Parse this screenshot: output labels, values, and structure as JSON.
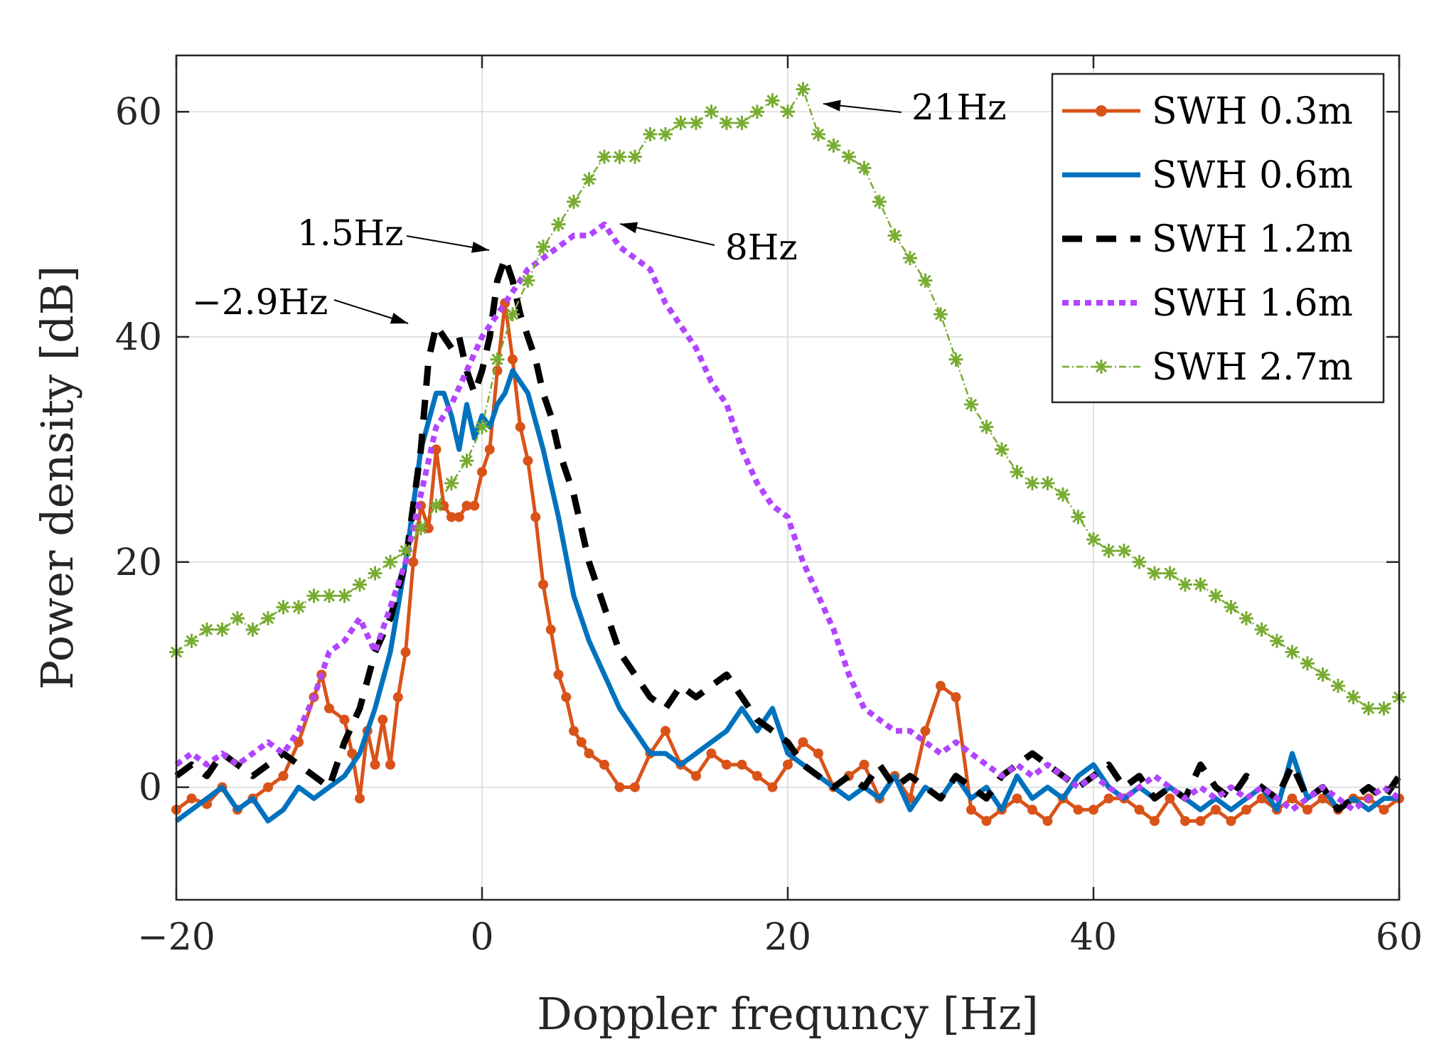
{
  "chart_data": {
    "type": "line",
    "title": "",
    "xlabel": "Doppler frequncy [Hz]",
    "ylabel": "Power density [dB]",
    "xlim": [
      -20,
      60
    ],
    "ylim": [
      -10,
      65
    ],
    "xticks": [
      -20,
      0,
      20,
      40,
      60
    ],
    "xtick_labels": [
      "−20",
      "0",
      "20",
      "40",
      "60"
    ],
    "yticks": [
      0,
      20,
      40,
      60
    ],
    "ytick_labels": [
      "0",
      "20",
      "40",
      "60"
    ],
    "grid": true,
    "legend_position": "top-right",
    "series": [
      {
        "name": "SWH 0.3m",
        "color": "#D95319",
        "style": "solid-dot",
        "x": [
          -20,
          -19,
          -18,
          -17,
          -16,
          -15,
          -14,
          -13,
          -12,
          -11,
          -10.5,
          -10,
          -9,
          -8.5,
          -8,
          -7.5,
          -7,
          -6.5,
          -6,
          -5.5,
          -5,
          -4.5,
          -4,
          -3.5,
          -3,
          -2.5,
          -2,
          -1.5,
          -1,
          -0.5,
          0,
          0.5,
          1,
          1.5,
          2,
          2.5,
          3,
          3.5,
          4,
          4.5,
          5,
          5.5,
          6,
          6.5,
          7,
          8,
          9,
          10,
          11,
          12,
          13,
          14,
          15,
          16,
          17,
          18,
          19,
          20,
          21,
          22,
          23,
          24,
          25,
          26,
          27,
          28,
          29,
          30,
          31,
          32,
          33,
          34,
          35,
          36,
          37,
          38,
          39,
          40,
          41,
          42,
          43,
          44,
          45,
          46,
          47,
          48,
          49,
          50,
          51,
          52,
          53,
          54,
          55,
          56,
          57,
          58,
          59,
          60
        ],
        "y": [
          -2,
          -1,
          -1.5,
          0,
          -2,
          -1,
          0,
          1,
          4,
          8,
          10,
          7,
          6,
          3,
          -1,
          5,
          2,
          6,
          2,
          8,
          12,
          20,
          25,
          23,
          30,
          25,
          24,
          24,
          25,
          25,
          28,
          30,
          37,
          43,
          38,
          32,
          29,
          24,
          18,
          14,
          10,
          8,
          5,
          4,
          3,
          2,
          0,
          0,
          3,
          5,
          2,
          1,
          3,
          2,
          2,
          1,
          0,
          2,
          4,
          3,
          0,
          1,
          2,
          -1,
          1,
          -1,
          5,
          9,
          8,
          -2,
          -3,
          -2,
          -1,
          -2,
          -3,
          -1,
          -2,
          -2,
          -1,
          -1,
          -2,
          -3,
          -1,
          -3,
          -3,
          -2,
          -3,
          -2,
          -1,
          -2,
          -1,
          -2,
          -1,
          -2,
          -1,
          -1,
          -2,
          -1
        ]
      },
      {
        "name": "SWH 0.6m",
        "color": "#0072BD",
        "style": "solid",
        "x": [
          -20,
          -19,
          -18,
          -17,
          -16,
          -15,
          -14,
          -13,
          -12,
          -11,
          -10,
          -9,
          -8,
          -7,
          -6,
          -5,
          -4,
          -3,
          -2.5,
          -2,
          -1.5,
          -1,
          -0.5,
          0,
          0.5,
          1,
          1.5,
          2,
          2.5,
          3,
          4,
          5,
          6,
          7,
          8,
          9,
          10,
          11,
          12,
          13,
          14,
          15,
          16,
          17,
          18,
          19,
          20,
          21,
          22,
          23,
          24,
          25,
          26,
          27,
          28,
          29,
          30,
          31,
          32,
          33,
          34,
          35,
          36,
          37,
          38,
          39,
          40,
          41,
          42,
          43,
          44,
          45,
          46,
          47,
          48,
          49,
          50,
          51,
          52,
          53,
          54,
          55,
          56,
          57,
          58,
          59,
          60
        ],
        "y": [
          -3,
          -2,
          -1,
          0,
          -2,
          -1,
          -3,
          -2,
          0,
          -1,
          0,
          1,
          3,
          7,
          12,
          20,
          30,
          35,
          35,
          33,
          30,
          34,
          31,
          33,
          32,
          34,
          35,
          37,
          36,
          35,
          30,
          24,
          17,
          13,
          10,
          7,
          5,
          3,
          3,
          2,
          3,
          4,
          5,
          7,
          5,
          7,
          3,
          2,
          1,
          0,
          -1,
          0,
          -1,
          1,
          -2,
          0,
          -1,
          1,
          -1,
          0,
          -2,
          1,
          -1,
          0,
          -1,
          1,
          2,
          0,
          -1,
          0,
          -1,
          0,
          -1,
          -2,
          -1,
          -2,
          -1,
          0,
          -2,
          3,
          -1,
          0,
          -2,
          -1,
          -2,
          -1,
          -1
        ]
      },
      {
        "name": "SWH 1.2m",
        "color": "#000000",
        "style": "dashed",
        "x": [
          -20,
          -19,
          -18,
          -17,
          -16,
          -15,
          -14,
          -13,
          -12,
          -11,
          -10,
          -9,
          -8,
          -7,
          -6,
          -5,
          -4,
          -3.5,
          -3,
          -2.5,
          -2,
          -1.5,
          -1,
          -0.5,
          0,
          0.5,
          1,
          1.5,
          2,
          2.5,
          3,
          3.5,
          4,
          4.5,
          5,
          6,
          7,
          8,
          9,
          10,
          11,
          12,
          13,
          14,
          15,
          16,
          17,
          18,
          19,
          20,
          21,
          22,
          23,
          24,
          25,
          26,
          27,
          28,
          29,
          30,
          31,
          32,
          33,
          34,
          35,
          36,
          37,
          38,
          39,
          40,
          41,
          42,
          43,
          44,
          45,
          46,
          47,
          48,
          49,
          50,
          51,
          52,
          53,
          54,
          55,
          56,
          57,
          58,
          59,
          60
        ],
        "y": [
          1,
          2,
          1,
          3,
          2,
          1,
          2,
          3,
          2,
          1,
          0,
          4,
          7,
          12,
          15,
          20,
          30,
          38,
          41,
          40,
          39,
          40,
          37,
          35,
          37,
          40,
          45,
          47,
          45,
          42,
          40,
          38,
          35,
          33,
          30,
          26,
          20,
          16,
          12,
          10,
          8,
          7,
          9,
          8,
          9,
          10,
          8,
          6,
          5,
          4,
          2,
          1,
          0,
          1,
          0,
          2,
          0,
          1,
          0,
          -1,
          1,
          0,
          -1,
          1,
          2,
          3,
          2,
          1,
          0,
          1,
          2,
          0,
          1,
          -1,
          0,
          -1,
          2,
          0,
          -1,
          1,
          0,
          -1,
          2,
          -1,
          0,
          -2,
          -1,
          0,
          -1,
          1
        ]
      },
      {
        "name": "SWH 1.6m",
        "color": "#B245FF",
        "style": "dotted",
        "x": [
          -20,
          -19,
          -18,
          -17,
          -16,
          -15,
          -14,
          -13,
          -12,
          -11,
          -10,
          -9,
          -8,
          -7,
          -6,
          -5,
          -4,
          -3,
          -2,
          -1,
          0,
          1,
          2,
          3,
          4,
          5,
          6,
          7,
          8,
          9,
          10,
          11,
          12,
          13,
          14,
          15,
          16,
          17,
          18,
          19,
          20,
          21,
          22,
          23,
          24,
          25,
          26,
          27,
          28,
          29,
          30,
          31,
          32,
          33,
          34,
          35,
          36,
          37,
          38,
          39,
          40,
          41,
          42,
          43,
          44,
          45,
          46,
          47,
          48,
          49,
          50,
          51,
          52,
          53,
          54,
          55,
          56,
          57,
          58,
          59,
          60
        ],
        "y": [
          2,
          3,
          2,
          3,
          2,
          3,
          4,
          3,
          5,
          8,
          12,
          13,
          15,
          12,
          16,
          20,
          26,
          32,
          34,
          37,
          40,
          42,
          44,
          46,
          47,
          48,
          49,
          49,
          50,
          48,
          47,
          46,
          43,
          41,
          39,
          36,
          34,
          30,
          27,
          25,
          24,
          20,
          17,
          14,
          10,
          7,
          6,
          5,
          5,
          4,
          3,
          4,
          3,
          2,
          1,
          2,
          1,
          2,
          1,
          0,
          1,
          0,
          -1,
          0,
          1,
          0,
          -1,
          0,
          -1,
          0,
          -1,
          0,
          -1,
          -2,
          -1,
          0,
          -1,
          -2,
          -1,
          0,
          -1
        ]
      },
      {
        "name": "SWH 2.7m",
        "color": "#77AC30",
        "style": "dashdot-star",
        "x": [
          -20,
          -19,
          -18,
          -17,
          -16,
          -15,
          -14,
          -13,
          -12,
          -11,
          -10,
          -9,
          -8,
          -7,
          -6,
          -5,
          -4,
          -3,
          -2,
          -1,
          0,
          1,
          2,
          3,
          4,
          5,
          6,
          7,
          8,
          9,
          10,
          11,
          12,
          13,
          14,
          15,
          16,
          17,
          18,
          19,
          20,
          21,
          22,
          23,
          24,
          25,
          26,
          27,
          28,
          29,
          30,
          31,
          32,
          33,
          34,
          35,
          36,
          37,
          38,
          39,
          40,
          41,
          42,
          43,
          44,
          45,
          46,
          47,
          48,
          49,
          50,
          51,
          52,
          53,
          54,
          55,
          56,
          57,
          58,
          59,
          60
        ],
        "y": [
          12,
          13,
          14,
          14,
          15,
          14,
          15,
          16,
          16,
          17,
          17,
          17,
          18,
          19,
          20,
          21,
          23,
          25,
          27,
          29,
          32,
          38,
          42,
          45,
          48,
          50,
          52,
          54,
          56,
          56,
          56,
          58,
          58,
          59,
          59,
          60,
          59,
          59,
          60,
          61,
          60,
          62,
          58,
          57,
          56,
          55,
          52,
          49,
          47,
          45,
          42,
          38,
          34,
          32,
          30,
          28,
          27,
          27,
          26,
          24,
          22,
          21,
          21,
          20,
          19,
          19,
          18,
          18,
          17,
          16,
          15,
          14,
          13,
          12,
          11,
          10,
          9,
          8,
          7,
          7,
          8
        ]
      }
    ],
    "annotations": [
      {
        "text": "1.5Hz",
        "x": 1.5,
        "y": 47
      },
      {
        "text": "−2.9Hz",
        "x": -2.9,
        "y": 41
      },
      {
        "text": "8Hz",
        "x": 8,
        "y": 50
      },
      {
        "text": "21Hz",
        "x": 21,
        "y": 62
      }
    ]
  }
}
